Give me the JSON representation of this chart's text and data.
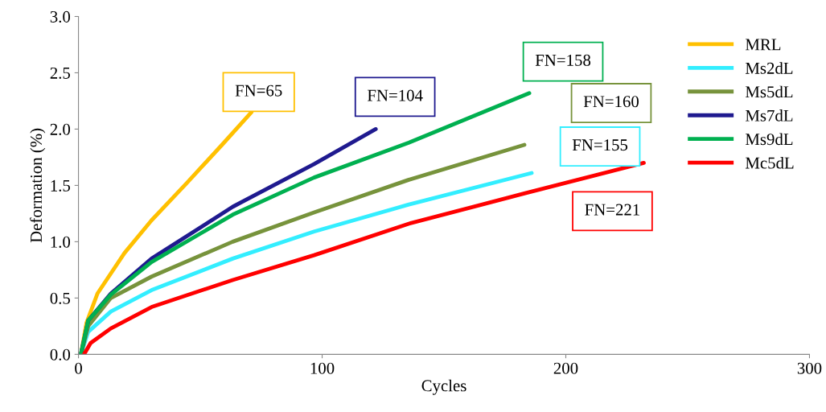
{
  "chart_data": {
    "type": "line",
    "xlabel": "Cycles",
    "ylabel": "Deformation (%)",
    "xlim": [
      0,
      300
    ],
    "xticks": [
      0,
      100,
      200,
      300
    ],
    "ylim": [
      0,
      3.0
    ],
    "yticks": [
      {
        "value": 0,
        "label": "0.0"
      },
      {
        "value": 0.5,
        "label": "0.5"
      },
      {
        "value": 1.0,
        "label": "1.0"
      },
      {
        "value": 1.5,
        "label": "1.5"
      },
      {
        "value": 2.0,
        "label": "2.0"
      },
      {
        "value": 2.5,
        "label": "2.5"
      },
      {
        "value": 3.0,
        "label": "3.0"
      }
    ],
    "grid": false,
    "legend": "top right",
    "marker": "none",
    "line_style": "solid",
    "series": [
      {
        "name": "MRL",
        "color": "#ffc000",
        "x": [
          1,
          3.3,
          7.8,
          18.9,
          30,
          44.4,
          58.9,
          71
        ],
        "values": [
          0,
          0.28,
          0.54,
          0.9,
          1.19,
          1.52,
          1.86,
          2.15
        ]
      },
      {
        "name": "Ms2dL",
        "color": "#33eeff",
        "x": [
          1,
          4,
          13.3,
          30,
          63.3,
          96.7,
          135.6,
          186
        ],
        "values": [
          0,
          0.2,
          0.38,
          0.57,
          0.85,
          1.09,
          1.33,
          1.61
        ]
      },
      {
        "name": "Ms5dL",
        "color": "#77933c",
        "x": [
          1,
          4,
          13.3,
          30,
          63.3,
          96.7,
          135.6,
          183
        ],
        "values": [
          0,
          0.25,
          0.5,
          0.69,
          1.0,
          1.26,
          1.55,
          1.86
        ]
      },
      {
        "name": "Ms7dL",
        "color": "#1f1a8f",
        "x": [
          1,
          4,
          13.3,
          30,
          63.3,
          96.7,
          122
        ],
        "values": [
          0,
          0.3,
          0.54,
          0.85,
          1.31,
          1.69,
          2.0
        ]
      },
      {
        "name": "Ms9dL",
        "color": "#00b050",
        "x": [
          1,
          4,
          13.3,
          30,
          63.3,
          96.7,
          135.6,
          185
        ],
        "values": [
          0,
          0.3,
          0.53,
          0.82,
          1.24,
          1.57,
          1.88,
          2.32
        ]
      },
      {
        "name": "Mc5dL",
        "color": "#ff0000",
        "x": [
          2.3,
          5,
          13.3,
          30,
          63.3,
          96.7,
          135.6,
          183.3,
          232
        ],
        "values": [
          0,
          0.1,
          0.23,
          0.42,
          0.66,
          0.88,
          1.16,
          1.43,
          1.7
        ]
      }
    ],
    "annotations": [
      "FN=65",
      "FN=155",
      "FN=160",
      "FN=104",
      "FN=158",
      "FN=221"
    ]
  }
}
